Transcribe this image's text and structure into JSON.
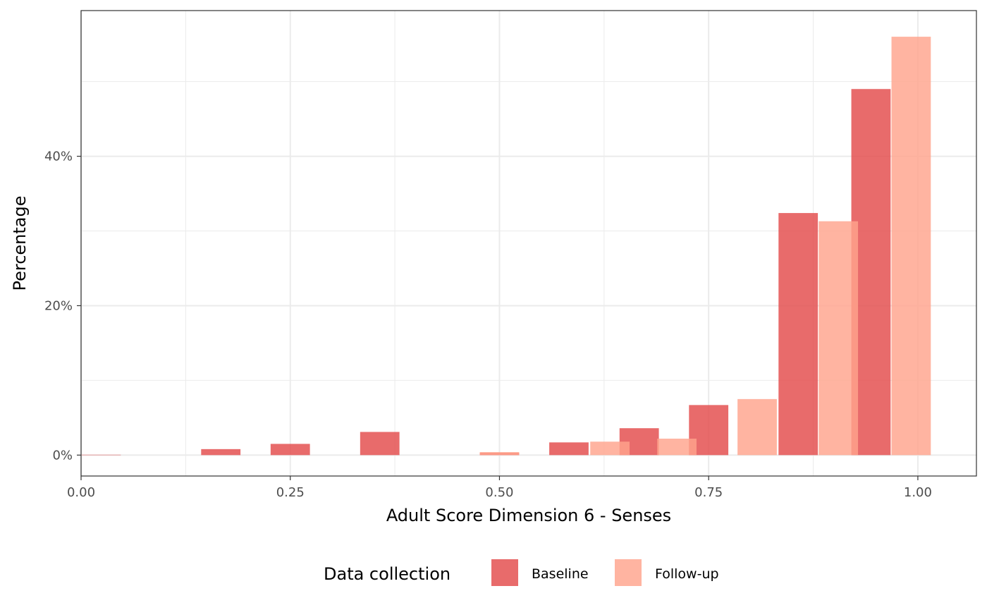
{
  "chart_data": {
    "type": "bar",
    "title": "",
    "xlabel": "Adult Score Dimension 6 - Senses",
    "ylabel": "Percentage",
    "xlim": [
      0,
      1.07
    ],
    "ylim": [
      -2.8,
      59.5
    ],
    "x_ticks": [
      {
        "value": 0,
        "label": "0.00"
      },
      {
        "value": 0.25,
        "label": "0.25"
      },
      {
        "value": 0.5,
        "label": "0.50"
      },
      {
        "value": 0.75,
        "label": "0.75"
      },
      {
        "value": 1,
        "label": "1.00"
      }
    ],
    "y_ticks": [
      {
        "value": 0,
        "label": "0%"
      },
      {
        "value": 20,
        "label": "20%"
      },
      {
        "value": 40,
        "label": "40%"
      }
    ],
    "y_minor_ticks": [
      10,
      30,
      50
    ],
    "x_minor_ticks": [
      0.125,
      0.375,
      0.625,
      0.875
    ],
    "grid": true,
    "bar_width": 0.047,
    "legend": {
      "title": "Data collection",
      "position": "bottom"
    },
    "series": [
      {
        "name": "Baseline",
        "color": "#E34A4A",
        "x": [
          0.024,
          0.167,
          0.25,
          0.357,
          0.5,
          0.583,
          0.667,
          0.75,
          0.857,
          0.944
        ],
        "values": [
          0.05,
          0.8,
          1.5,
          3.1,
          0.3,
          1.7,
          3.6,
          6.7,
          32.4,
          49.0
        ]
      },
      {
        "name": "Follow-up",
        "color": "#FFA48C",
        "x": [
          0.069,
          0.214,
          0.306,
          0.404,
          0.5,
          0.632,
          0.712,
          0.808,
          0.905,
          0.992
        ],
        "values": [
          0,
          0,
          0,
          0,
          0.4,
          1.8,
          2.2,
          7.5,
          31.3,
          56.0
        ]
      }
    ]
  }
}
